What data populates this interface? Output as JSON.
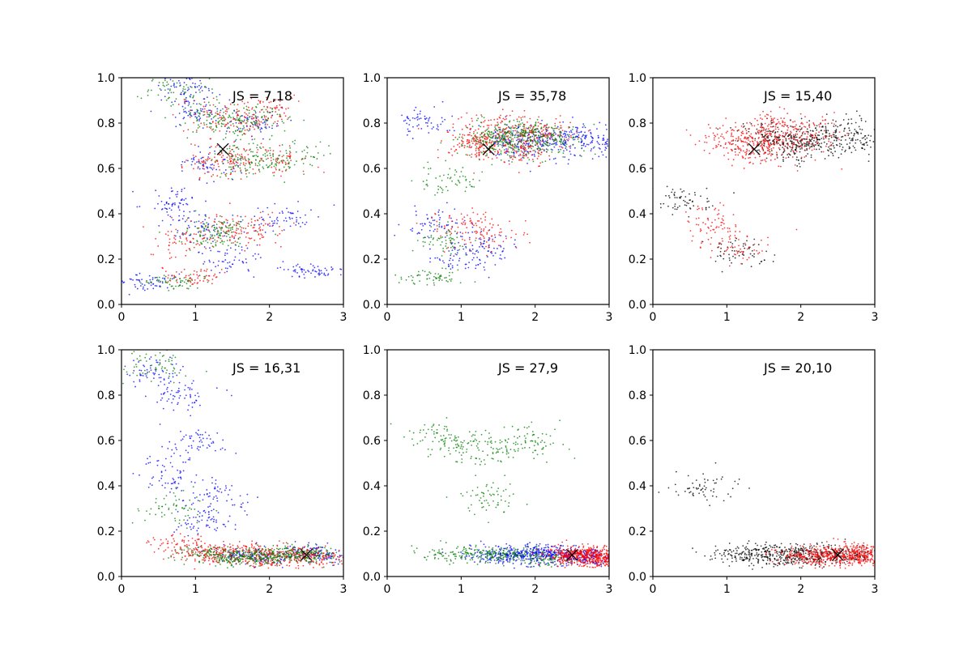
{
  "chart_data": [
    {
      "type": "scatter",
      "label": "JS = 7,18",
      "xlim": [
        0,
        3
      ],
      "ylim": [
        0,
        1
      ],
      "x_ticks": [
        "0",
        "1",
        "2",
        "3"
      ],
      "y_ticks": [
        "0.0",
        "0.2",
        "0.4",
        "0.6",
        "0.8",
        "1.0"
      ],
      "marker": [
        1.37,
        0.685
      ],
      "series": [
        {
          "color": "#0000ff",
          "points_sample": [
            [
              0.3,
              0.1
            ],
            [
              0.7,
              0.45
            ],
            [
              1.0,
              0.85
            ],
            [
              1.2,
              0.62
            ],
            [
              1.5,
              0.2
            ],
            [
              1.8,
              0.8
            ],
            [
              2.2,
              0.38
            ],
            [
              2.6,
              0.15
            ],
            [
              0.9,
              0.95
            ],
            [
              1.1,
              0.35
            ]
          ]
        },
        {
          "color": "#ff0000",
          "points_sample": [
            [
              1.2,
              0.82
            ],
            [
              1.5,
              0.65
            ],
            [
              1.8,
              0.33
            ],
            [
              1.0,
              0.12
            ],
            [
              2.0,
              0.85
            ],
            [
              1.3,
              0.62
            ],
            [
              0.9,
              0.28
            ],
            [
              1.7,
              0.81
            ],
            [
              2.1,
              0.63
            ],
            [
              1.4,
              0.34
            ]
          ]
        },
        {
          "color": "#008000",
          "points_sample": [
            [
              1.1,
              0.83
            ],
            [
              1.6,
              0.65
            ],
            [
              1.4,
              0.33
            ],
            [
              0.8,
              0.1
            ],
            [
              1.9,
              0.82
            ],
            [
              2.3,
              0.64
            ],
            [
              1.2,
              0.3
            ],
            [
              0.7,
              0.95
            ],
            [
              1.5,
              0.79
            ],
            [
              1.8,
              0.62
            ]
          ]
        }
      ]
    },
    {
      "type": "scatter",
      "label": "JS = 35,78",
      "xlim": [
        0,
        3
      ],
      "ylim": [
        0,
        1
      ],
      "x_ticks": [
        "0",
        "1",
        "2",
        "3"
      ],
      "y_ticks": [
        "0.0",
        "0.2",
        "0.4",
        "0.6",
        "0.8",
        "1.0"
      ],
      "marker": [
        1.37,
        0.685
      ],
      "series": [
        {
          "color": "#0000ff",
          "points_sample": [
            [
              1.6,
              0.73
            ],
            [
              2.0,
              0.74
            ],
            [
              2.4,
              0.72
            ],
            [
              2.8,
              0.71
            ],
            [
              0.7,
              0.35
            ],
            [
              1.0,
              0.2
            ],
            [
              0.5,
              0.8
            ],
            [
              1.3,
              0.27
            ],
            [
              1.9,
              0.7
            ],
            [
              2.6,
              0.73
            ]
          ]
        },
        {
          "color": "#ff0000",
          "points_sample": [
            [
              1.3,
              0.72
            ],
            [
              1.6,
              0.78
            ],
            [
              1.9,
              0.68
            ],
            [
              1.1,
              0.74
            ],
            [
              2.2,
              0.75
            ],
            [
              1.4,
              0.3
            ],
            [
              1.0,
              0.35
            ],
            [
              1.7,
              0.7
            ],
            [
              2.0,
              0.76
            ],
            [
              1.2,
              0.69
            ]
          ]
        },
        {
          "color": "#008000",
          "points_sample": [
            [
              1.5,
              0.73
            ],
            [
              1.8,
              0.76
            ],
            [
              2.1,
              0.72
            ],
            [
              0.8,
              0.28
            ],
            [
              0.6,
              0.12
            ],
            [
              1.9,
              0.75
            ],
            [
              2.3,
              0.73
            ],
            [
              1.6,
              0.7
            ],
            [
              0.9,
              0.55
            ],
            [
              1.4,
              0.74
            ]
          ]
        }
      ]
    },
    {
      "type": "scatter",
      "label": "JS = 15,40",
      "xlim": [
        0,
        3
      ],
      "ylim": [
        0,
        1
      ],
      "x_ticks": [
        "0",
        "1",
        "2",
        "3"
      ],
      "y_ticks": [
        "0.0",
        "0.2",
        "0.4",
        "0.6",
        "0.8",
        "1.0"
      ],
      "marker": [
        1.37,
        0.685
      ],
      "series": [
        {
          "color": "#000000",
          "points_sample": [
            [
              1.8,
              0.73
            ],
            [
              2.2,
              0.72
            ],
            [
              2.6,
              0.74
            ],
            [
              2.9,
              0.71
            ],
            [
              1.5,
              0.75
            ],
            [
              2.0,
              0.7
            ],
            [
              0.4,
              0.45
            ],
            [
              1.2,
              0.22
            ],
            [
              2.4,
              0.76
            ],
            [
              1.9,
              0.68
            ]
          ]
        },
        {
          "color": "#ff0000",
          "points_sample": [
            [
              1.3,
              0.74
            ],
            [
              1.6,
              0.77
            ],
            [
              1.9,
              0.7
            ],
            [
              1.0,
              0.72
            ],
            [
              2.2,
              0.76
            ],
            [
              0.8,
              0.35
            ],
            [
              1.1,
              0.25
            ],
            [
              1.5,
              0.7
            ],
            [
              1.7,
              0.79
            ],
            [
              1.4,
              0.68
            ]
          ]
        }
      ]
    },
    {
      "type": "scatter",
      "label": "JS = 16,31",
      "xlim": [
        0,
        3
      ],
      "ylim": [
        0,
        1
      ],
      "x_ticks": [
        "0",
        "1",
        "2",
        "3"
      ],
      "y_ticks": [
        "0.0",
        "0.2",
        "0.4",
        "0.6",
        "0.8",
        "1.0"
      ],
      "marker": [
        2.5,
        0.095
      ],
      "series": [
        {
          "color": "#0000ff",
          "points_sample": [
            [
              0.8,
              0.8
            ],
            [
              1.0,
              0.6
            ],
            [
              0.6,
              0.45
            ],
            [
              1.3,
              0.35
            ],
            [
              1.6,
              0.1
            ],
            [
              2.0,
              0.08
            ],
            [
              2.5,
              0.11
            ],
            [
              0.4,
              0.9
            ],
            [
              1.1,
              0.25
            ],
            [
              2.8,
              0.09
            ]
          ]
        },
        {
          "color": "#ff0000",
          "points_sample": [
            [
              1.2,
              0.08
            ],
            [
              1.5,
              0.1
            ],
            [
              1.9,
              0.09
            ],
            [
              2.3,
              0.1
            ],
            [
              2.7,
              0.08
            ],
            [
              1.0,
              0.11
            ],
            [
              0.8,
              0.15
            ],
            [
              2.1,
              0.07
            ],
            [
              1.7,
              0.12
            ],
            [
              2.5,
              0.1
            ]
          ]
        },
        {
          "color": "#008000",
          "points_sample": [
            [
              1.4,
              0.09
            ],
            [
              1.8,
              0.1
            ],
            [
              2.2,
              0.08
            ],
            [
              2.6,
              0.1
            ],
            [
              1.1,
              0.1
            ],
            [
              2.0,
              0.09
            ],
            [
              0.5,
              0.93
            ],
            [
              0.7,
              0.3
            ],
            [
              1.6,
              0.08
            ],
            [
              2.4,
              0.11
            ]
          ]
        }
      ]
    },
    {
      "type": "scatter",
      "label": "JS = 27,9",
      "xlim": [
        0,
        3
      ],
      "ylim": [
        0,
        1
      ],
      "x_ticks": [
        "0",
        "1",
        "2",
        "3"
      ],
      "y_ticks": [
        "0.0",
        "0.2",
        "0.4",
        "0.6",
        "0.8",
        "1.0"
      ],
      "marker": [
        2.5,
        0.095
      ],
      "series": [
        {
          "color": "#0000ff",
          "points_sample": [
            [
              1.6,
              0.09
            ],
            [
              1.9,
              0.1
            ],
            [
              2.2,
              0.08
            ],
            [
              2.5,
              0.1
            ],
            [
              2.8,
              0.09
            ],
            [
              1.4,
              0.1
            ],
            [
              2.0,
              0.11
            ],
            [
              2.6,
              0.08
            ],
            [
              1.8,
              0.09
            ],
            [
              2.3,
              0.1
            ]
          ]
        },
        {
          "color": "#ff0000",
          "points_sample": [
            [
              2.6,
              0.09
            ],
            [
              2.8,
              0.1
            ],
            [
              2.9,
              0.08
            ],
            [
              2.7,
              0.11
            ],
            [
              2.5,
              0.08
            ],
            [
              2.95,
              0.09
            ],
            [
              2.4,
              0.1
            ],
            [
              2.85,
              0.07
            ],
            [
              2.65,
              0.1
            ],
            [
              2.75,
              0.09
            ]
          ]
        },
        {
          "color": "#008000",
          "points_sample": [
            [
              1.5,
              0.09
            ],
            [
              1.8,
              0.1
            ],
            [
              2.1,
              0.08
            ],
            [
              1.3,
              0.1
            ],
            [
              0.8,
              0.1
            ],
            [
              1.0,
              0.58
            ],
            [
              1.5,
              0.56
            ],
            [
              2.0,
              0.6
            ],
            [
              1.4,
              0.35
            ],
            [
              0.6,
              0.62
            ]
          ]
        }
      ]
    },
    {
      "type": "scatter",
      "label": "JS = 20,10",
      "xlim": [
        0,
        3
      ],
      "ylim": [
        0,
        1
      ],
      "x_ticks": [
        "0",
        "1",
        "2",
        "3"
      ],
      "y_ticks": [
        "0.0",
        "0.2",
        "0.4",
        "0.6",
        "0.8",
        "1.0"
      ],
      "marker": [
        2.5,
        0.095
      ],
      "series": [
        {
          "color": "#000000",
          "points_sample": [
            [
              1.1,
              0.09
            ],
            [
              1.4,
              0.1
            ],
            [
              1.7,
              0.08
            ],
            [
              2.0,
              0.11
            ],
            [
              2.4,
              0.09
            ],
            [
              2.8,
              0.1
            ],
            [
              1.9,
              0.07
            ],
            [
              2.2,
              0.1
            ],
            [
              0.7,
              0.39
            ],
            [
              1.5,
              0.12
            ]
          ]
        },
        {
          "color": "#ff0000",
          "points_sample": [
            [
              2.1,
              0.09
            ],
            [
              2.4,
              0.1
            ],
            [
              2.7,
              0.08
            ],
            [
              2.9,
              0.1
            ],
            [
              2.5,
              0.11
            ],
            [
              2.3,
              0.07
            ],
            [
              2.8,
              0.12
            ],
            [
              2.6,
              0.09
            ],
            [
              2.0,
              0.1
            ],
            [
              2.95,
              0.08
            ]
          ]
        }
      ]
    }
  ]
}
